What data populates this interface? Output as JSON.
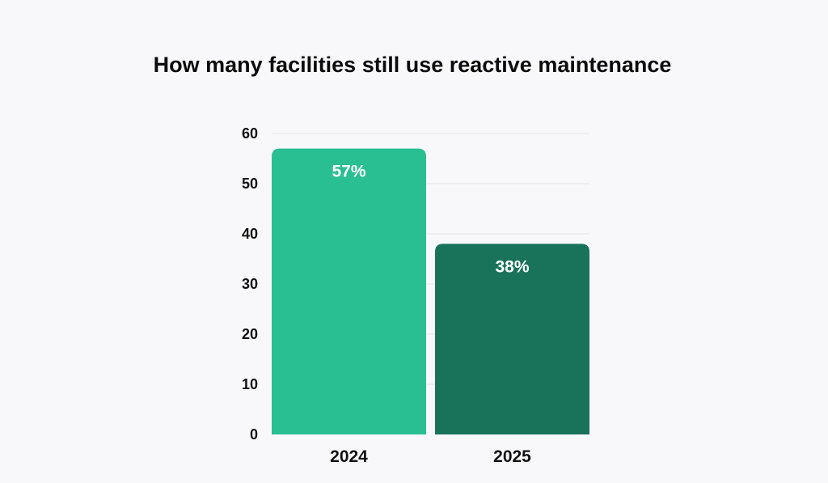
{
  "chart_data": {
    "type": "bar",
    "title": "How many facilities still use reactive maintenance",
    "xlabel": "",
    "ylabel": "",
    "categories": [
      "2024",
      "2025"
    ],
    "values": [
      57,
      38
    ],
    "data_labels": [
      "57%",
      "38%"
    ],
    "bar_colors": [
      "#29bf93",
      "#19735a"
    ],
    "ylim": [
      0,
      60
    ],
    "yticks": [
      0,
      10,
      20,
      30,
      40,
      50,
      60
    ],
    "grid": true,
    "legend": "none"
  }
}
